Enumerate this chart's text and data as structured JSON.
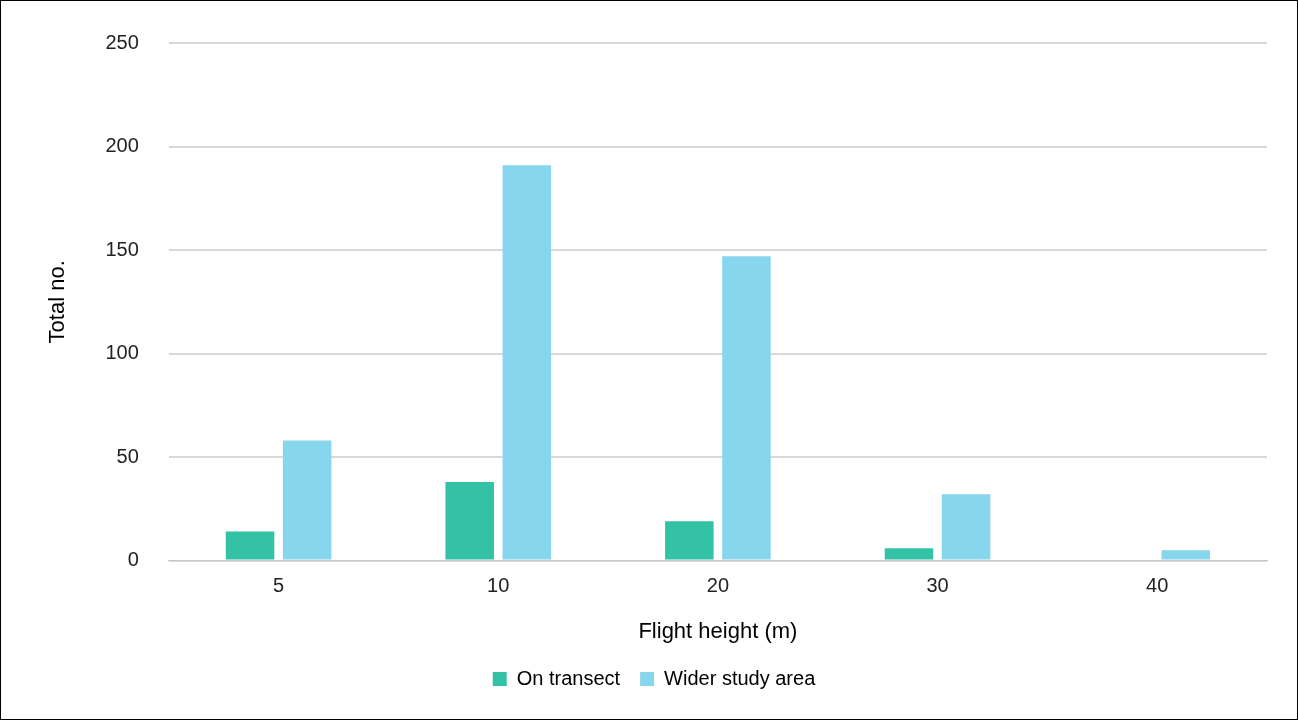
{
  "chart_data": {
    "type": "bar",
    "xlabel": "Flight height (m)",
    "ylabel": "Total no.",
    "categories": [
      "5",
      "10",
      "20",
      "30",
      "40"
    ],
    "series": [
      {
        "name": "On transect",
        "color": "#33c2a6",
        "values": [
          14,
          38,
          19,
          6,
          0
        ]
      },
      {
        "name": "Wider study area",
        "color": "#87d6ee",
        "values": [
          58,
          191,
          147,
          32,
          5
        ]
      }
    ],
    "ylim": [
      0,
      250
    ],
    "yticks": [
      0,
      50,
      100,
      150,
      200,
      250
    ],
    "grid": "y",
    "legend": "bottom"
  }
}
